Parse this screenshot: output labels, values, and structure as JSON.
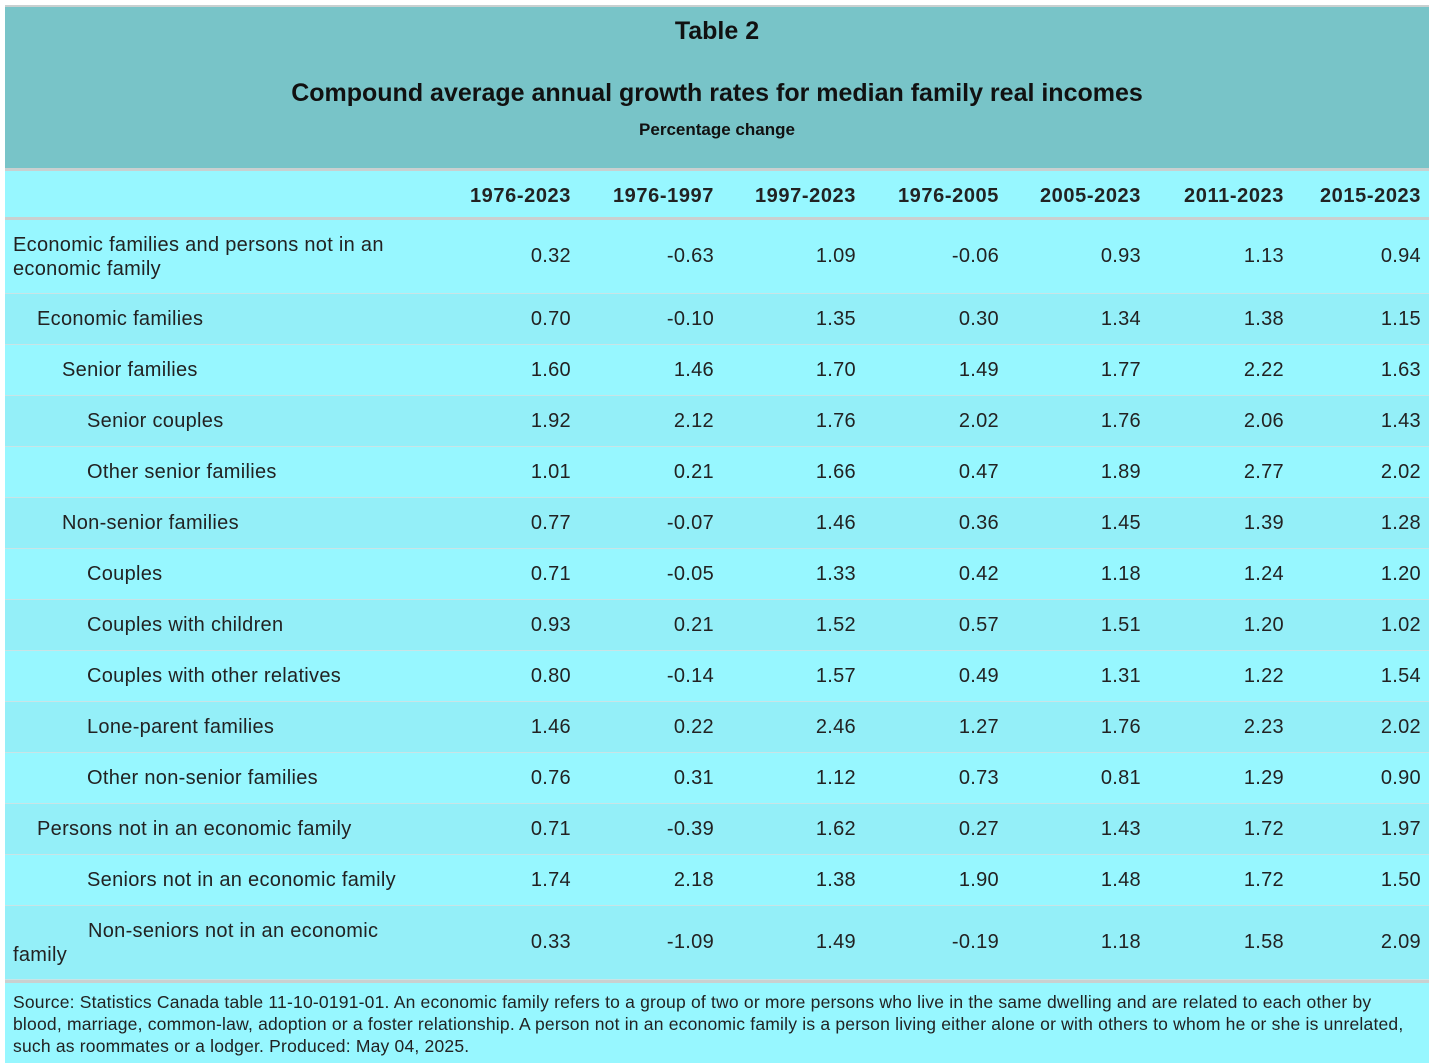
{
  "table": {
    "title": "Table 2",
    "subtitle": "Compound average annual growth rates for median family real incomes",
    "unit": "Percentage change",
    "columns": [
      "1976-2023",
      "1976-1997",
      "1997-2023",
      "1976-2005",
      "2005-2023",
      "2011-2023",
      "2015-2023"
    ],
    "rows": [
      {
        "label": "Economic families and persons not in an economic family",
        "level": 0,
        "values": [
          "0.32",
          "-0.63",
          "1.09",
          "-0.06",
          "0.93",
          "1.13",
          "0.94"
        ]
      },
      {
        "label": "Economic families",
        "level": 1,
        "values": [
          "0.70",
          "-0.10",
          "1.35",
          "0.30",
          "1.34",
          "1.38",
          "1.15"
        ]
      },
      {
        "label": "Senior families",
        "level": 2,
        "values": [
          "1.60",
          "1.46",
          "1.70",
          "1.49",
          "1.77",
          "2.22",
          "1.63"
        ]
      },
      {
        "label": "Senior couples",
        "level": 3,
        "values": [
          "1.92",
          "2.12",
          "1.76",
          "2.02",
          "1.76",
          "2.06",
          "1.43"
        ]
      },
      {
        "label": "Other senior families",
        "level": 3,
        "values": [
          "1.01",
          "0.21",
          "1.66",
          "0.47",
          "1.89",
          "2.77",
          "2.02"
        ]
      },
      {
        "label": "Non-senior families",
        "level": 2,
        "values": [
          "0.77",
          "-0.07",
          "1.46",
          "0.36",
          "1.45",
          "1.39",
          "1.28"
        ]
      },
      {
        "label": "Couples",
        "level": 3,
        "values": [
          "0.71",
          "-0.05",
          "1.33",
          "0.42",
          "1.18",
          "1.24",
          "1.20"
        ]
      },
      {
        "label": "Couples with children",
        "level": 3,
        "values": [
          "0.93",
          "0.21",
          "1.52",
          "0.57",
          "1.51",
          "1.20",
          "1.02"
        ]
      },
      {
        "label": "Couples with other relatives",
        "level": 3,
        "values": [
          "0.80",
          "-0.14",
          "1.57",
          "0.49",
          "1.31",
          "1.22",
          "1.54"
        ]
      },
      {
        "label": "Lone-parent families",
        "level": 3,
        "values": [
          "1.46",
          "0.22",
          "2.46",
          "1.27",
          "1.76",
          "2.23",
          "2.02"
        ]
      },
      {
        "label": "Other non-senior families",
        "level": 3,
        "values": [
          "0.76",
          "0.31",
          "1.12",
          "0.73",
          "0.81",
          "1.29",
          "0.90"
        ]
      },
      {
        "label": "Persons not in an economic family",
        "level": 1,
        "values": [
          "0.71",
          "-0.39",
          "1.62",
          "0.27",
          "1.43",
          "1.72",
          "1.97"
        ]
      },
      {
        "label": "Seniors not in an economic family",
        "level": 3,
        "values": [
          "1.74",
          "2.18",
          "1.38",
          "1.90",
          "1.48",
          "1.72",
          "1.50"
        ]
      },
      {
        "label": "Non-seniors not in an economic family",
        "level": 3,
        "values": [
          "0.33",
          "-1.09",
          "1.49",
          "-0.19",
          "1.18",
          "1.58",
          "2.09"
        ]
      }
    ],
    "source": "Source: Statistics Canada table 11-10-0191-01. An economic family refers to a group of two or more persons who live in the same dwelling and are related to each other by blood, marriage, common-law, adoption or a foster relationship. A person not in an economic family is a person living either alone or with others to whom he or she is unrelated, such as roommates or a lodger. Produced: May 04, 2025."
  }
}
